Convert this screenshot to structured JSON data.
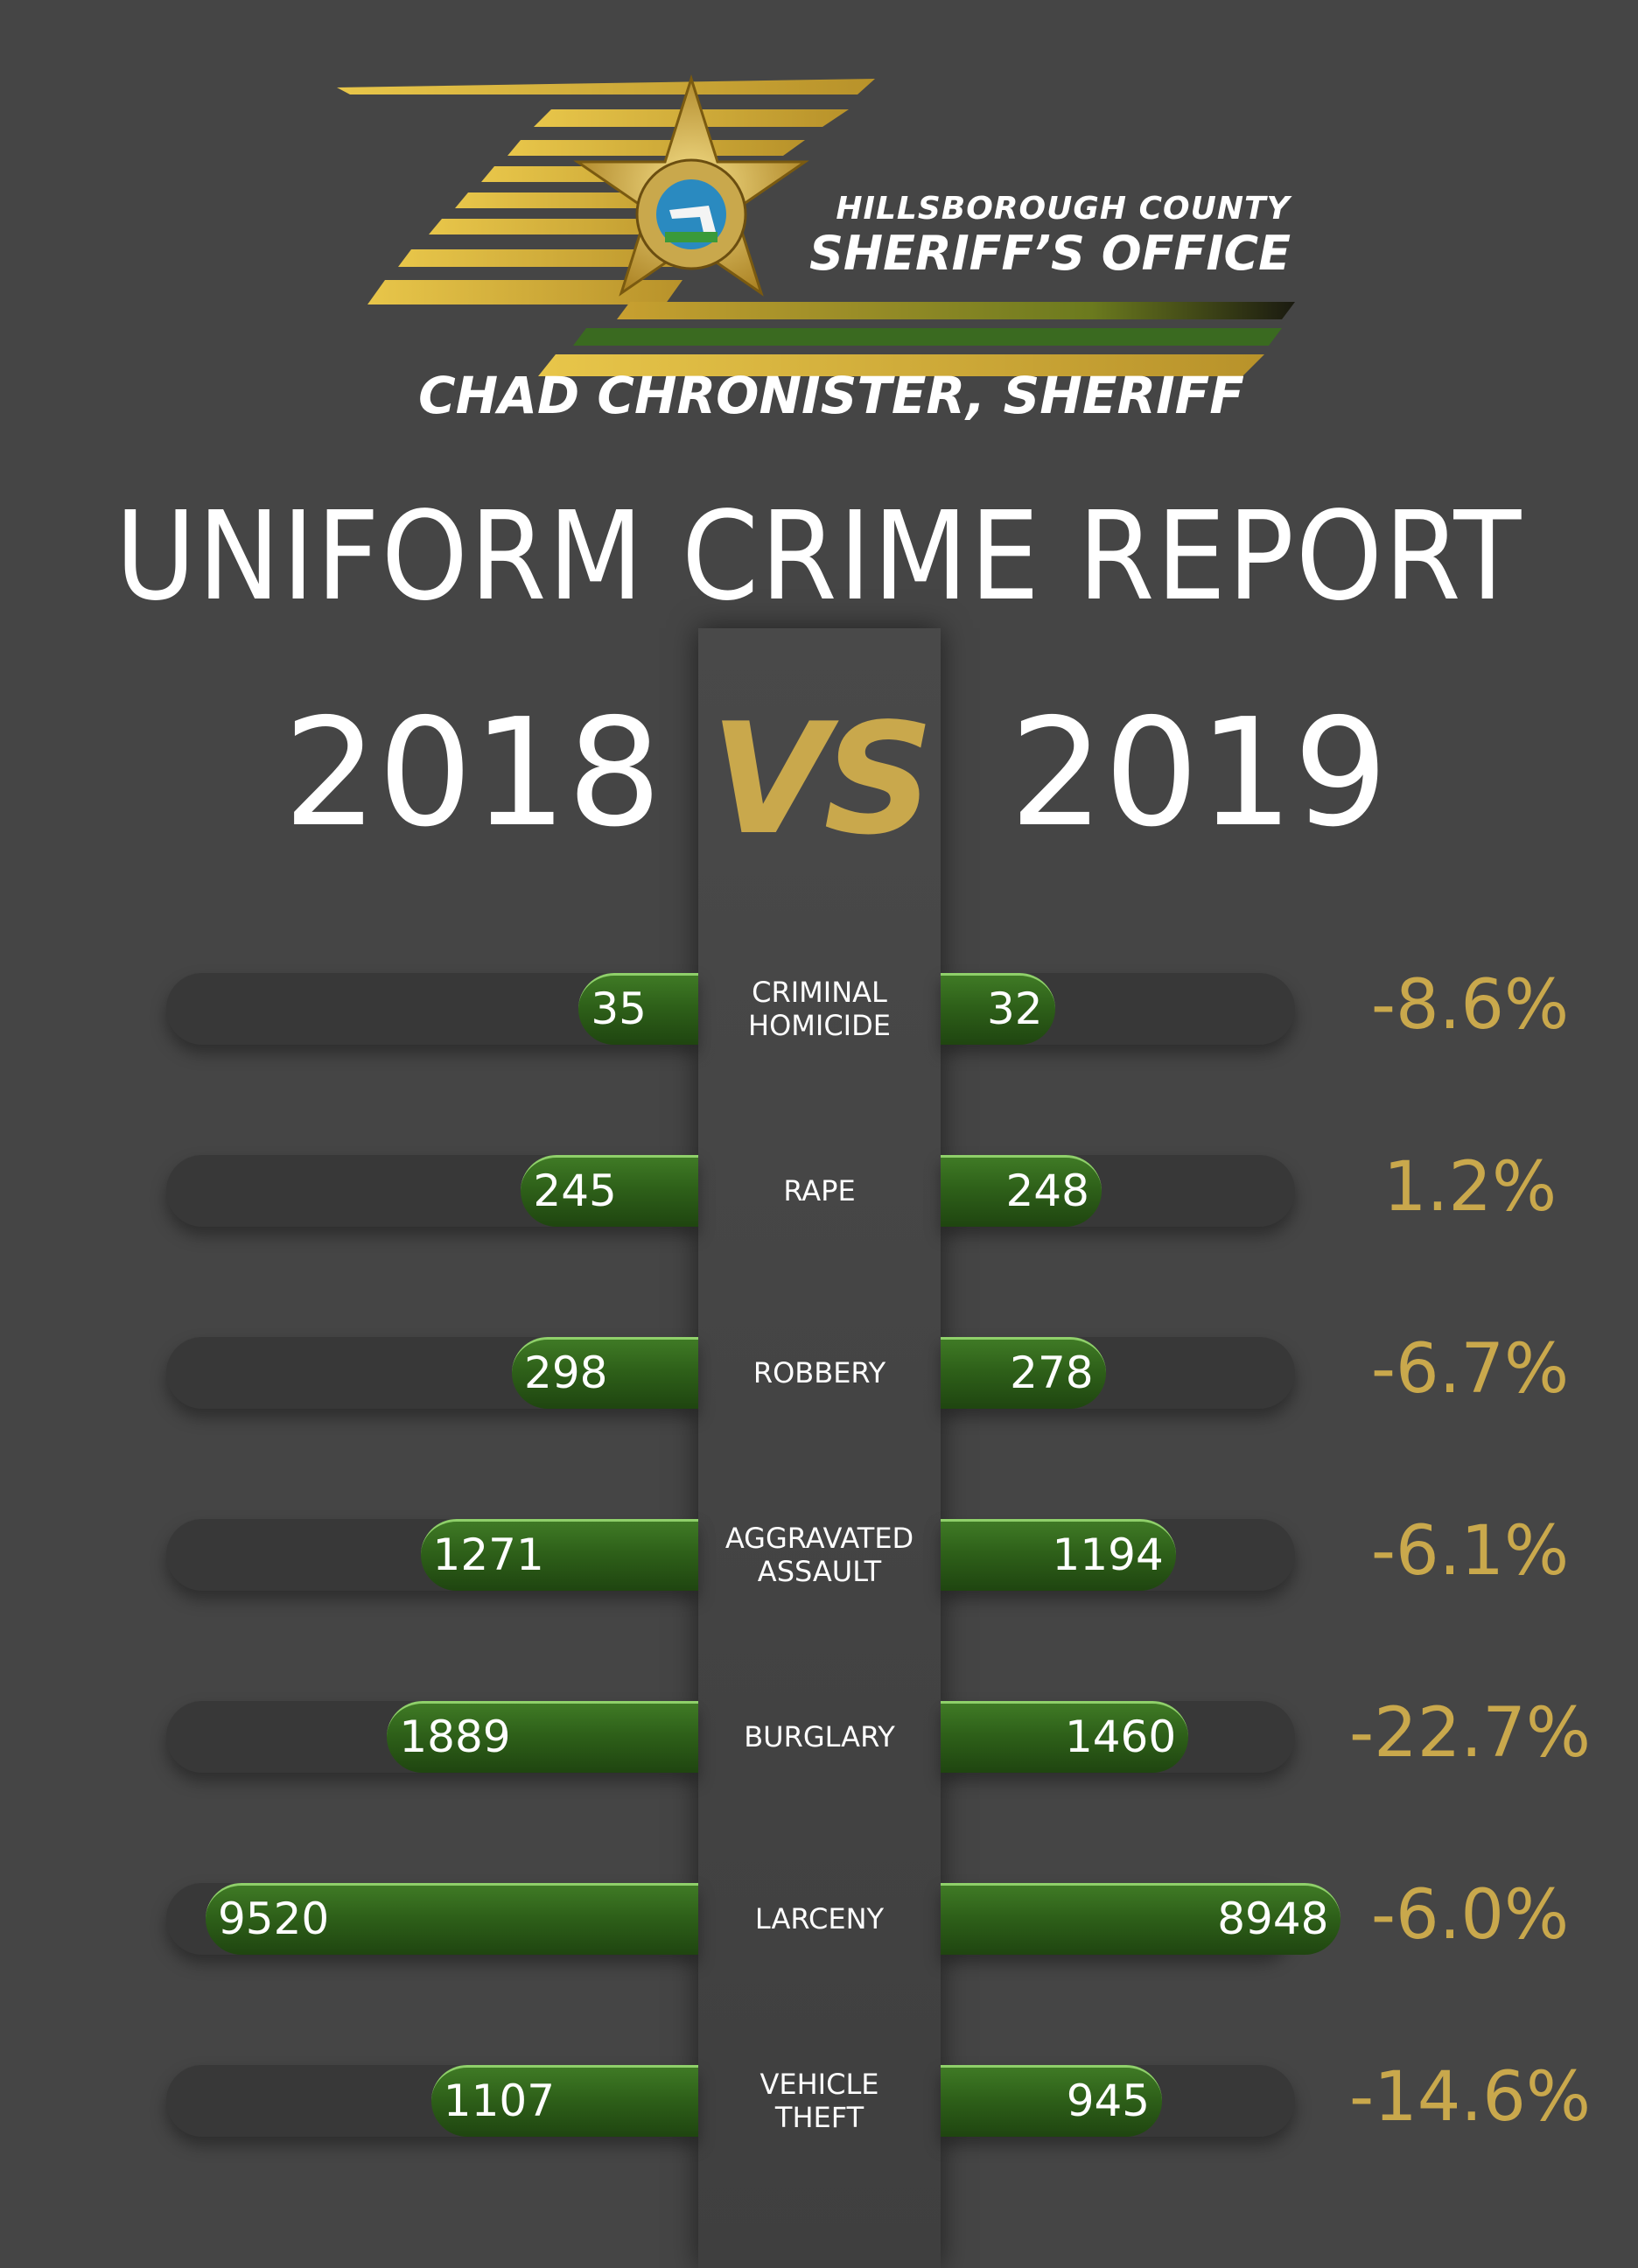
{
  "header": {
    "org_line1": "HILLSBOROUGH COUNTY",
    "org_line2": "SHERIFF’S OFFICE",
    "sheriff": "CHAD CHRONISTER, SHERIFF",
    "badge_text": "SHERIFF'S OFFICE HILLSBOROUGH COUNTY"
  },
  "chart_data": {
    "type": "bar",
    "title": "UNIFORM CRIME REPORT",
    "left_year": "2018",
    "vs_label": "VS",
    "right_year": "2019",
    "categories": [
      "CRIMINAL HOMICIDE",
      "RAPE",
      "ROBBERY",
      "AGGRAVATED ASSAULT",
      "BURGLARY",
      "LARCENY",
      "VEHICLE THEFT"
    ],
    "label_lines": [
      [
        "CRIMINAL",
        "HOMICIDE"
      ],
      [
        "RAPE"
      ],
      [
        "ROBBERY"
      ],
      [
        "AGGRAVATED",
        "ASSAULT"
      ],
      [
        "BURGLARY"
      ],
      [
        "LARCENY"
      ],
      [
        "VEHICLE",
        "THEFT"
      ]
    ],
    "series": [
      {
        "name": "2018",
        "values": [
          35,
          245,
          298,
          1271,
          1889,
          9520,
          1107
        ]
      },
      {
        "name": "2019",
        "values": [
          32,
          248,
          278,
          1194,
          1460,
          8948,
          945
        ]
      }
    ],
    "percent_change": [
      "-8.6%",
      "1.2%",
      "-6.7%",
      "-6.1%",
      "-22.7%",
      "-6.0%",
      "-14.6%"
    ]
  },
  "colors": {
    "background": "#454545",
    "gold": "#c9a84c",
    "bar_green": "#2e6019",
    "track": "#383838"
  }
}
